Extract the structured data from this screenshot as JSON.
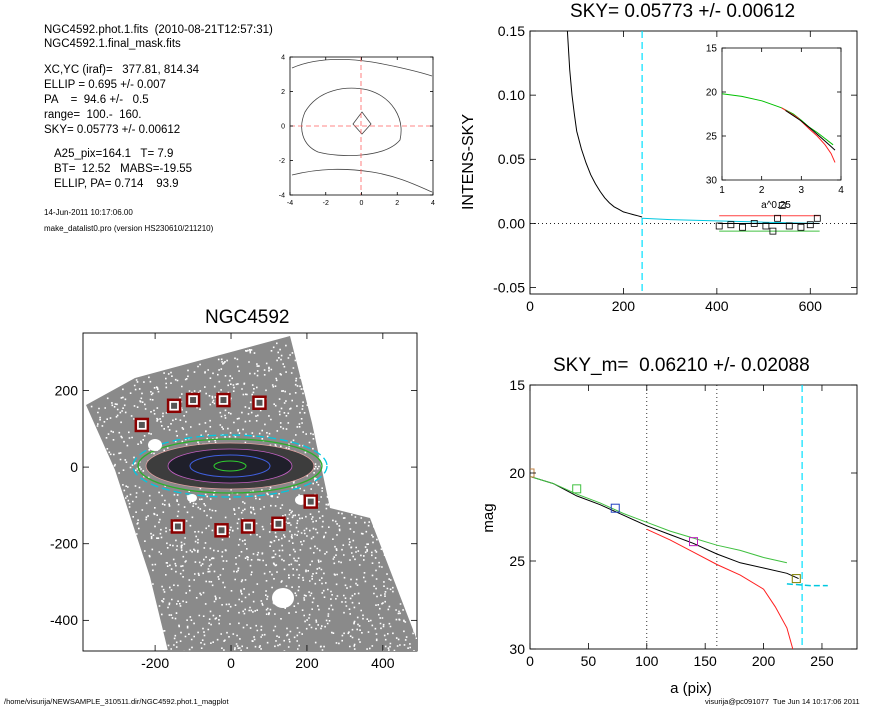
{
  "header": {
    "line1": "NGC4592.phot.1.fits  (2010-08-21T12:57:31)",
    "line2": "NGC4592.1.final_mask.fits",
    "params": [
      "XC,YC (iraf)=   377.81, 814.34",
      "ELLIP = 0.695 +/- 0.007",
      "PA    =  94.6 +/-   0.5",
      "range=  100.-  160.",
      "SKY= 0.05773 +/- 0.00612"
    ],
    "results": [
      "A25_pix=164.1   T= 7.9",
      "BT=  12.52   MABS=-19.55",
      "ELLIP, PA= 0.714    93.9"
    ],
    "date": "14-Jun-2011 10:17:06.00",
    "program": "make_datalist0.pro (version HS230610/211210)"
  },
  "footer": {
    "left": "/home/visurija/NEWSAMPLE_310511.dir/NGC4592.phot.1_magplot",
    "right": "visurija@pc091077  Tue Jun 14 10:17:06 2011"
  },
  "chart_data": [
    {
      "id": "contour",
      "type": "contour",
      "xlim": [
        -4,
        4
      ],
      "ylim": [
        -4,
        4
      ],
      "xticks": [
        "-4",
        "-2",
        "0",
        "2",
        "4"
      ],
      "yticks": [
        "-4",
        "-2",
        "0",
        "2",
        "4"
      ],
      "crosshair_color": "#ff6060"
    },
    {
      "id": "sky",
      "type": "line",
      "title": "SKY= 0.05773 +/- 0.00612",
      "ylabel": "INTENS-SKY",
      "xlim": [
        0,
        700
      ],
      "ylim": [
        -0.055,
        0.15
      ],
      "xticks": [
        "0",
        "200",
        "400",
        "600"
      ],
      "yticks": [
        "-0.05",
        "0.00",
        "0.05",
        "0.10",
        "0.15"
      ],
      "series": [
        {
          "color": "#000000",
          "points": [
            [
              80,
              0.15
            ],
            [
              85,
              0.12
            ],
            [
              90,
              0.1
            ],
            [
              95,
              0.085
            ],
            [
              100,
              0.072
            ],
            [
              110,
              0.058
            ],
            [
              120,
              0.047
            ],
            [
              130,
              0.038
            ],
            [
              140,
              0.031
            ],
            [
              150,
              0.025
            ],
            [
              160,
              0.02
            ],
            [
              170,
              0.016
            ],
            [
              180,
              0.013
            ],
            [
              190,
              0.011
            ],
            [
              200,
              0.009
            ],
            [
              210,
              0.008
            ],
            [
              220,
              0.007
            ],
            [
              230,
              0.006
            ],
            [
              240,
              0.005
            ]
          ]
        },
        {
          "color": "#00c8e0",
          "points": [
            [
              240,
              0.004
            ],
            [
              300,
              0.003
            ],
            [
              350,
              0.0025
            ],
            [
              400,
              0.002
            ],
            [
              450,
              0.0015
            ],
            [
              500,
              0.001
            ],
            [
              550,
              0.0005
            ],
            [
              600,
              0.0002
            ],
            [
              620,
              0.0
            ]
          ]
        }
      ],
      "sky_boxes": [
        [
          405,
          -0.002
        ],
        [
          430,
          -0.001
        ],
        [
          455,
          -0.003
        ],
        [
          480,
          0.0
        ],
        [
          505,
          -0.002
        ],
        [
          520,
          -0.006
        ],
        [
          530,
          0.004
        ],
        [
          540,
          0.014
        ],
        [
          555,
          -0.002
        ],
        [
          580,
          -0.003
        ],
        [
          600,
          -0.001
        ],
        [
          615,
          0.004
        ]
      ],
      "band_lines": [
        {
          "color": "#ff4040",
          "y": 0.006
        },
        {
          "color": "#40c040",
          "y": -0.006
        },
        {
          "color": "#000000",
          "y": 0.0
        }
      ],
      "vline": {
        "x": 240,
        "color": "#00e0ff"
      }
    },
    {
      "id": "inset",
      "type": "line",
      "xlabel": "a^0.25",
      "xlim": [
        1,
        4
      ],
      "ylim": [
        15,
        30
      ],
      "y_reversed": true,
      "xticks": [
        "1",
        "2",
        "3",
        "4"
      ],
      "yticks": [
        "15",
        "20",
        "25",
        "30"
      ],
      "series": [
        {
          "color": "#00c000",
          "points": [
            [
              1.0,
              20.2
            ],
            [
              1.5,
              20.5
            ],
            [
              2.0,
              21.0
            ],
            [
              2.5,
              21.8
            ],
            [
              2.8,
              22.5
            ],
            [
              3.0,
              23.2
            ],
            [
              3.2,
              24.0
            ],
            [
              3.4,
              24.6
            ],
            [
              3.6,
              25.3
            ],
            [
              3.8,
              26.0
            ]
          ]
        },
        {
          "color": "#ff2020",
          "points": [
            [
              2.5,
              21.8
            ],
            [
              2.9,
              22.9
            ],
            [
              3.2,
              24.2
            ],
            [
              3.4,
              25.0
            ],
            [
              3.6,
              26.0
            ],
            [
              3.75,
              27.0
            ],
            [
              3.85,
              28.0
            ]
          ]
        },
        {
          "color": "#000000",
          "points": [
            [
              2.6,
              22.1
            ],
            [
              3.0,
              23.3
            ],
            [
              3.3,
              24.4
            ],
            [
              3.5,
              25.2
            ],
            [
              3.7,
              26.0
            ],
            [
              3.85,
              26.6
            ]
          ]
        }
      ]
    },
    {
      "id": "image",
      "type": "scatter",
      "title": "NGC4592",
      "xlim": [
        -390,
        490
      ],
      "ylim": [
        -480,
        350
      ],
      "xticks": [
        "-200",
        "0",
        "200",
        "400"
      ],
      "yticks": [
        "-400",
        "-200",
        "0",
        "200"
      ],
      "mask_boxes": [
        [
          -235,
          110
        ],
        [
          -150,
          160
        ],
        [
          -100,
          175
        ],
        [
          -20,
          175
        ],
        [
          75,
          168
        ],
        [
          210,
          -90
        ],
        [
          -140,
          -155
        ],
        [
          -25,
          -165
        ],
        [
          45,
          -155
        ],
        [
          125,
          -148
        ]
      ]
    },
    {
      "id": "mag",
      "type": "line",
      "title": "SKY_m=  0.06210 +/- 0.02088",
      "xlabel": "a (pix)",
      "ylabel": "mag",
      "xlim": [
        0,
        280
      ],
      "ylim": [
        15,
        30
      ],
      "y_reversed": true,
      "xticks": [
        "0",
        "50",
        "100",
        "150",
        "200",
        "250"
      ],
      "yticks": [
        "15",
        "20",
        "25",
        "30"
      ],
      "series": [
        {
          "color": "#000000",
          "points": [
            [
              0,
              20.2
            ],
            [
              20,
              20.6
            ],
            [
              40,
              21.3
            ],
            [
              60,
              21.8
            ],
            [
              80,
              22.4
            ],
            [
              100,
              23.0
            ],
            [
              120,
              23.5
            ],
            [
              140,
              24.0
            ],
            [
              160,
              24.6
            ],
            [
              180,
              25.1
            ],
            [
              200,
              25.4
            ],
            [
              220,
              25.7
            ],
            [
              230,
              26.0
            ]
          ]
        },
        {
          "color": "#40c040",
          "points": [
            [
              0,
              20.2
            ],
            [
              20,
              20.6
            ],
            [
              40,
              21.2
            ],
            [
              60,
              21.7
            ],
            [
              80,
              22.3
            ],
            [
              100,
              22.8
            ],
            [
              120,
              23.3
            ],
            [
              140,
              23.7
            ],
            [
              160,
              24.1
            ],
            [
              180,
              24.4
            ],
            [
              200,
              24.8
            ],
            [
              220,
              25.1
            ]
          ]
        },
        {
          "color": "#ff2020",
          "points": [
            [
              100,
              23.2
            ],
            [
              120,
              23.8
            ],
            [
              140,
              24.5
            ],
            [
              160,
              25.2
            ],
            [
              180,
              25.8
            ],
            [
              200,
              26.6
            ],
            [
              210,
              27.6
            ],
            [
              220,
              28.8
            ],
            [
              225,
              30.0
            ]
          ]
        },
        {
          "color": "#00c8e0",
          "points": [
            [
              220,
              26.3
            ],
            [
              240,
              26.4
            ],
            [
              255,
              26.4
            ]
          ]
        }
      ],
      "vlines": [
        {
          "x": 100,
          "color": "#000000"
        },
        {
          "x": 160,
          "color": "#000000"
        },
        {
          "x": 233,
          "color": "#00e0ff"
        }
      ],
      "markers": [
        {
          "x": 0,
          "y": 20.0,
          "color": "#c08040"
        },
        {
          "x": 40,
          "y": 20.9,
          "color": "#40c040"
        },
        {
          "x": 73,
          "y": 22.0,
          "color": "#2040c0"
        },
        {
          "x": 140,
          "y": 23.9,
          "color": "#c020c0"
        },
        {
          "x": 228,
          "y": 26.0,
          "color": "#808000"
        }
      ]
    }
  ]
}
